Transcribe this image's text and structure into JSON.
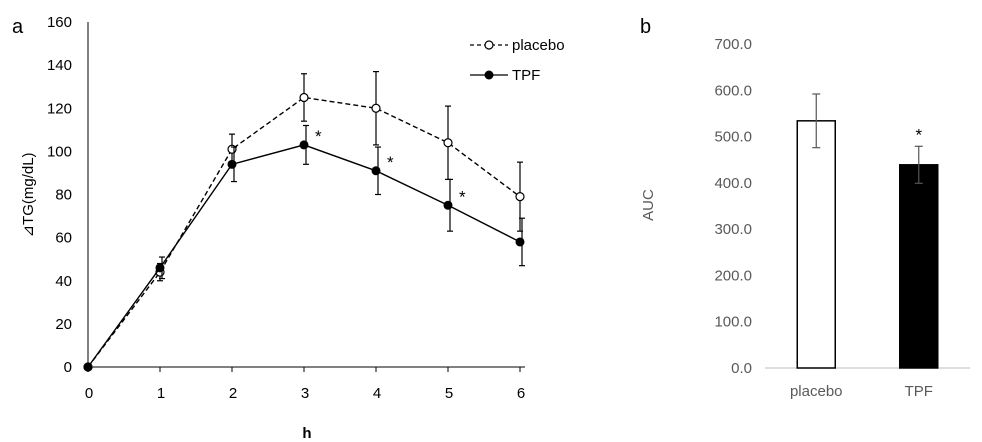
{
  "chart_data": [
    {
      "panel_label": "a",
      "type": "line",
      "title": "",
      "xlabel": "h",
      "ylabel": "⊿TG(mg/dL)",
      "x": [
        0,
        1,
        2,
        3,
        4,
        5,
        6
      ],
      "x_ticks": [
        "0",
        "1",
        "2",
        "3",
        "4",
        "5",
        "6"
      ],
      "y_ticks": [
        "0",
        "20",
        "40",
        "60",
        "80",
        "100",
        "120",
        "140",
        "160"
      ],
      "xlim": [
        0,
        6
      ],
      "ylim": [
        0,
        160
      ],
      "grid": false,
      "legend_position": "top-right",
      "series": [
        {
          "name": "placebo",
          "style": "dashed-open-circle",
          "color": "#000000",
          "values": [
            0,
            44,
            101,
            125,
            120,
            104,
            79
          ],
          "error": [
            0,
            4,
            7,
            11,
            17,
            17,
            16
          ],
          "significance": [
            "",
            "",
            "",
            "",
            "",
            "",
            ""
          ]
        },
        {
          "name": "TPF",
          "style": "solid-filled-circle",
          "color": "#000000",
          "values": [
            0,
            46,
            94,
            103,
            91,
            75,
            58
          ],
          "error": [
            0,
            5,
            8,
            9,
            11,
            12,
            11
          ],
          "significance": [
            "",
            "",
            "",
            "*",
            "*",
            "*",
            ""
          ]
        }
      ]
    },
    {
      "panel_label": "b",
      "type": "bar",
      "title": "",
      "xlabel": "",
      "ylabel": "AUC",
      "categories": [
        "placebo",
        "TPF"
      ],
      "values": [
        534,
        439
      ],
      "error": [
        58,
        40
      ],
      "significance": [
        "",
        "*"
      ],
      "fill_colors": [
        "#ffffff",
        "#000000"
      ],
      "y_ticks": [
        "0.0",
        "100.0",
        "200.0",
        "300.0",
        "400.0",
        "500.0",
        "600.0",
        "700.0"
      ],
      "ylim": [
        0,
        700
      ],
      "grid": false
    }
  ]
}
